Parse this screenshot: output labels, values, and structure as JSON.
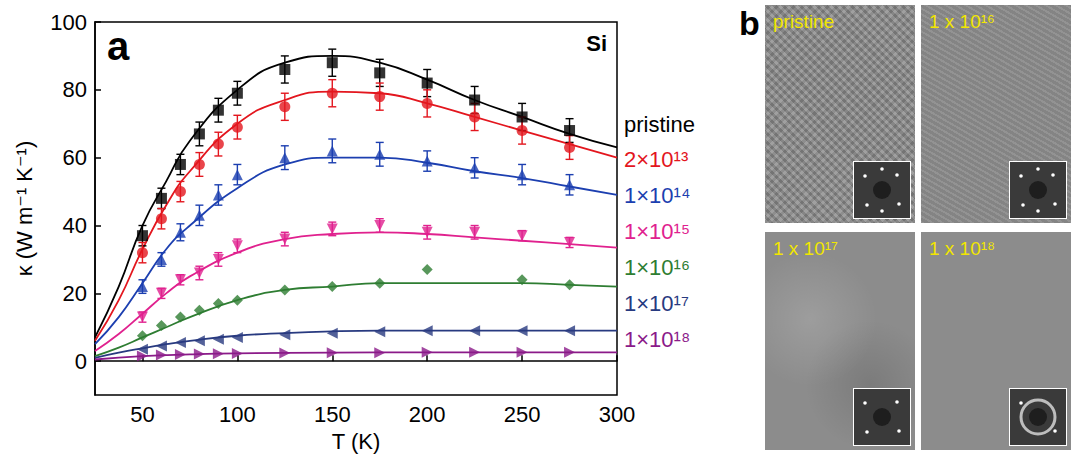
{
  "chart_data": {
    "type": "scatter",
    "panel_label": "a",
    "annotation": "Si",
    "x_label": "T (K)",
    "y_label": "κ (W m⁻¹ K⁻¹)",
    "xlim": [
      25,
      300
    ],
    "xticks": [
      50,
      100,
      150,
      200,
      250,
      300
    ],
    "ylim": [
      -10,
      100
    ],
    "yticks": [
      0,
      20,
      40,
      60,
      80,
      100
    ],
    "grid": false,
    "legend": "right",
    "x": [
      50,
      60,
      70,
      80,
      90,
      100,
      125,
      150,
      175,
      200,
      225,
      250,
      275
    ],
    "series": [
      {
        "name": "pristine",
        "color": "#000000",
        "marker": "square",
        "values": [
          37,
          48,
          58,
          67,
          74,
          79,
          86,
          88,
          85,
          82,
          77,
          72,
          68
        ],
        "errors": [
          3,
          3,
          3,
          3.5,
          3.5,
          3.5,
          4,
          4,
          4,
          4,
          4,
          4,
          3.5
        ],
        "fit": {
          "x": [
            25,
            37.5,
            50,
            62.5,
            75,
            100,
            125,
            150,
            175,
            200,
            225,
            250,
            275,
            300
          ],
          "values": [
            7,
            22,
            40,
            53,
            65,
            80,
            88,
            90,
            88,
            83,
            77,
            72,
            67,
            63
          ]
        }
      },
      {
        "name": "2×10¹³",
        "color": "#e3161e",
        "marker": "circle",
        "values": [
          32,
          42,
          50,
          58,
          64,
          69,
          75,
          79,
          78,
          76,
          72,
          68,
          63
        ],
        "errors": [
          3,
          3,
          3,
          3.5,
          3.5,
          3.5,
          4,
          4,
          4,
          4,
          4,
          4,
          3.5
        ],
        "fit": {
          "x": [
            25,
            37.5,
            50,
            62.5,
            75,
            100,
            125,
            150,
            175,
            200,
            225,
            250,
            275,
            300
          ],
          "values": [
            6,
            18,
            33,
            46,
            56,
            70,
            77,
            79.5,
            79,
            76,
            72,
            68,
            64,
            60
          ]
        }
      },
      {
        "name": "1×10¹⁴",
        "color": "#1c3fb0",
        "marker": "triangle",
        "values": [
          22,
          30,
          38,
          43,
          49,
          55,
          60,
          62,
          61,
          59,
          57,
          55,
          52
        ],
        "errors": [
          2,
          2,
          2.5,
          3,
          3,
          3,
          3.5,
          3.5,
          3.5,
          3,
          3,
          3,
          3
        ],
        "fit": {
          "x": [
            25,
            37.5,
            50,
            62.5,
            75,
            100,
            125,
            150,
            175,
            200,
            225,
            250,
            275,
            300
          ],
          "values": [
            5,
            13,
            23,
            33,
            40,
            51,
            58,
            60,
            60,
            58.5,
            56,
            54,
            51.5,
            49
          ]
        }
      },
      {
        "name": "1×10¹⁵",
        "color": "#e0218e",
        "marker": "triangle_down",
        "values": [
          13,
          20,
          24,
          26,
          30,
          34,
          36,
          39,
          40,
          38,
          38,
          37,
          35
        ],
        "errors": [
          1.5,
          1.5,
          1.5,
          2,
          2,
          2,
          2,
          2,
          2,
          2,
          2,
          1.5,
          1.5
        ],
        "fit": {
          "x": [
            25,
            37.5,
            50,
            62.5,
            75,
            100,
            125,
            150,
            175,
            200,
            225,
            250,
            275,
            300
          ],
          "values": [
            3,
            8,
            14,
            20,
            25,
            32,
            36,
            37.5,
            38,
            37.5,
            36.5,
            35.5,
            34.5,
            33.5
          ]
        }
      },
      {
        "name": "1×10¹⁶",
        "color": "#2e7d32",
        "marker": "diamond",
        "values": [
          7.5,
          10.5,
          13,
          15,
          17,
          18,
          21,
          22,
          23,
          27,
          null,
          24,
          22.5
        ],
        "fit": {
          "x": [
            25,
            37.5,
            50,
            62.5,
            75,
            100,
            125,
            150,
            175,
            200,
            225,
            250,
            275,
            300
          ],
          "values": [
            1.5,
            4,
            7,
            10,
            13,
            18,
            21,
            22,
            23,
            23,
            23,
            23,
            22.5,
            22
          ]
        }
      },
      {
        "name": "1×10¹⁷",
        "color": "#283a80",
        "marker": "triangle_left",
        "values": [
          3.5,
          4.5,
          5.5,
          6,
          6.5,
          7,
          7.8,
          8.2,
          8.7,
          9,
          9,
          9,
          9
        ],
        "fit": {
          "x": [
            25,
            37.5,
            50,
            62.5,
            75,
            100,
            125,
            150,
            175,
            200,
            225,
            250,
            275,
            300
          ],
          "values": [
            1,
            2.5,
            3.8,
            5,
            6,
            7.5,
            8.3,
            8.8,
            9,
            9,
            9,
            9,
            9,
            9
          ]
        }
      },
      {
        "name": "1×10¹⁸",
        "color": "#8b1a89",
        "marker": "triangle_right",
        "values": [
          1.5,
          1.8,
          2,
          2.1,
          2.2,
          2.3,
          2.4,
          2.5,
          2.5,
          2.6,
          2.6,
          2.6,
          2.6
        ],
        "fit": {
          "x": [
            25,
            50,
            75,
            100,
            150,
            200,
            300
          ],
          "values": [
            0.5,
            1.5,
            2,
            2.3,
            2.5,
            2.6,
            2.6
          ]
        }
      }
    ]
  },
  "panel_b": {
    "label": "b",
    "images": [
      {
        "label": "pristine"
      },
      {
        "label": "1 x 10¹⁶"
      },
      {
        "label": "1 x 10¹⁷"
      },
      {
        "label": "1 x 10¹⁸"
      }
    ]
  }
}
